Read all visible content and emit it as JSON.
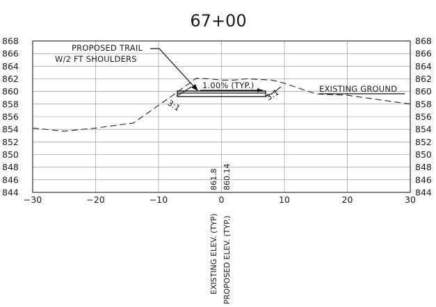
{
  "title": "67+00",
  "y_ticks": [
    "868",
    "866",
    "864",
    "862",
    "860",
    "858",
    "856",
    "854",
    "852",
    "850",
    "848",
    "846",
    "844"
  ],
  "x_ticks": [
    "−30",
    "−20",
    "−10",
    "0",
    "10",
    "20",
    "30"
  ],
  "labels": {
    "trail_line1": "PROPOSED TRAIL",
    "trail_line2": "W/2 FT SHOULDERS",
    "cross_slope": "1.00% (TYP.)",
    "existing_ground": "EXISTING GROUND",
    "slope_left": "3:1",
    "slope_right": "3:1",
    "existing_elev_value": "861.8",
    "proposed_elev_value": "860.14",
    "existing_elev_label": "EXISTING ELEV. (TYP)",
    "proposed_elev_label": "PROPOSED ELEV. (TYP.)"
  },
  "chart_data": {
    "type": "line",
    "title": "67+00",
    "xlim": [
      -30,
      30
    ],
    "ylim": [
      844,
      868
    ],
    "grid": true,
    "series": [
      {
        "x": [
          -30,
          -25,
          -20,
          -14,
          -8,
          -4,
          -2,
          0,
          2,
          4,
          6,
          8,
          10,
          15,
          20,
          25,
          30
        ],
        "y": [
          854.2,
          853.7,
          854.2,
          855.0,
          859.2,
          862.1,
          862.0,
          861.8,
          861.8,
          862.0,
          861.9,
          861.8,
          861.3,
          859.6,
          859.4,
          858.7,
          858.0
        ],
        "style": "dashed",
        "label": "EXISTING GROUND"
      },
      {
        "x": [
          -7,
          -3.5,
          0,
          3.5,
          7
        ],
        "y": [
          860.2,
          860.17,
          860.14,
          860.11,
          860.08
        ],
        "style": "solid",
        "label": "PROPOSED TRAIL"
      }
    ]
  }
}
